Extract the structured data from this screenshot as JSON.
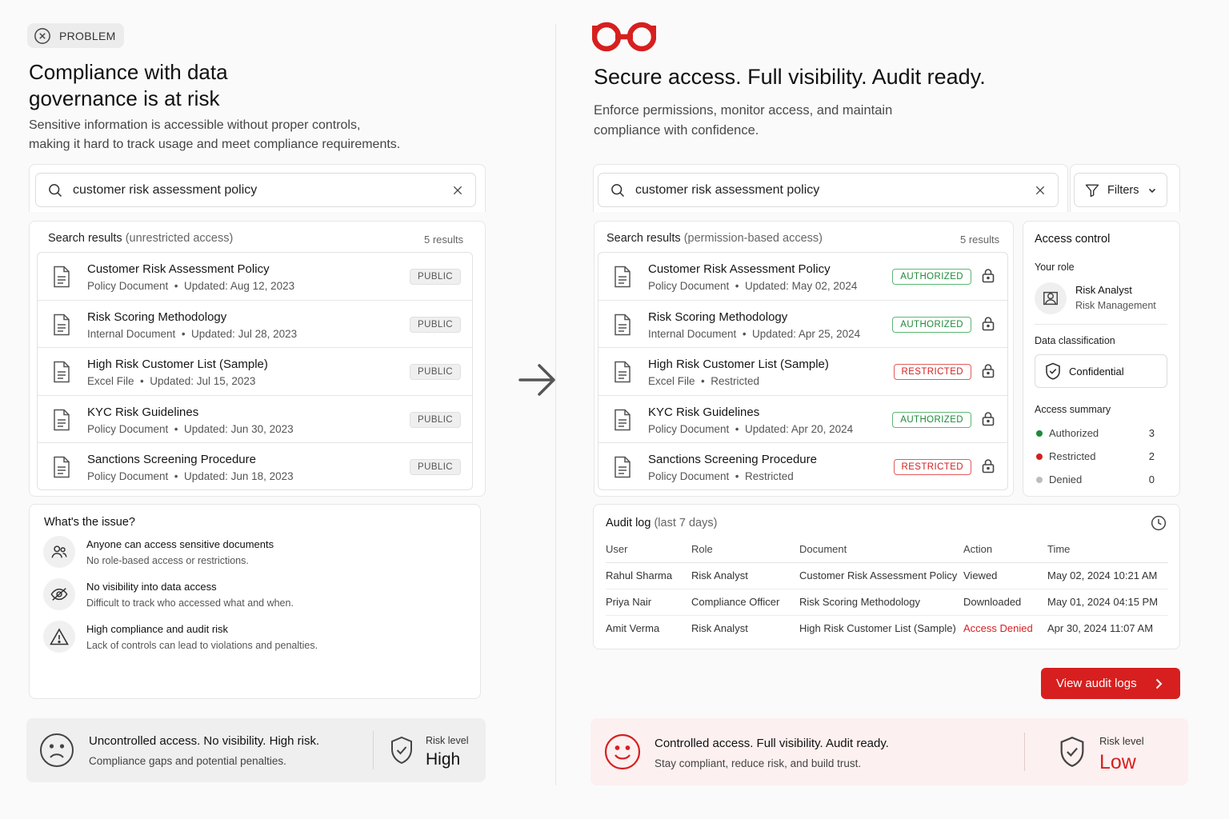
{
  "left": {
    "badge": "PROBLEM",
    "title_line1": "Compliance with data",
    "title_line2": "governance is at risk",
    "subtitle_line1": "Sensitive information is accessible without proper controls,",
    "subtitle_line2": "making it hard to track usage and meet compliance requirements.",
    "search_value": "customer risk assessment policy",
    "results_header": "Search results",
    "results_qualifier": "(unrestricted access)",
    "results_count": "5 results",
    "results": [
      {
        "title": "Customer Risk Assessment Policy",
        "type": "Policy Document",
        "meta": "Updated: Aug 12, 2023",
        "badge": "PUBLIC"
      },
      {
        "title": "Risk Scoring Methodology",
        "type": "Internal Document",
        "meta": "Updated: Jul 28, 2023",
        "badge": "PUBLIC"
      },
      {
        "title": "High Risk Customer List (Sample)",
        "type": "Excel File",
        "meta": "Updated: Jul 15, 2023",
        "badge": "PUBLIC"
      },
      {
        "title": "KYC Risk Guidelines",
        "type": "Policy Document",
        "meta": "Updated: Jun 30, 2023",
        "badge": "PUBLIC"
      },
      {
        "title": "Sanctions Screening Procedure",
        "type": "Policy Document",
        "meta": "Updated: Jun 18, 2023",
        "badge": "PUBLIC"
      }
    ],
    "issues_title": "What's the issue?",
    "issues": [
      {
        "icon": "users-icon",
        "title": "Anyone can access sensitive documents",
        "desc": "No role-based access or restrictions."
      },
      {
        "icon": "eye-off-icon",
        "title": "No visibility into data access",
        "desc": "Difficult to track who accessed what and when."
      },
      {
        "icon": "warning-icon",
        "title": "High compliance and audit risk",
        "desc": "Lack of controls can lead to violations and penalties."
      }
    ],
    "footer_title": "Uncontrolled access. No visibility. High risk.",
    "footer_desc": "Compliance gaps and potential penalties.",
    "risk_label": "Risk level",
    "risk_value": "High"
  },
  "right": {
    "title": "Secure access. Full visibility. Audit ready.",
    "subtitle_line1": "Enforce permissions, monitor access, and maintain",
    "subtitle_line2": "compliance with confidence.",
    "search_value": "customer risk assessment policy",
    "filters_label": "Filters",
    "results_header": "Search results",
    "results_qualifier": "(permission-based access)",
    "results_count": "5 results",
    "results": [
      {
        "title": "Customer Risk Assessment Policy",
        "type": "Policy Document",
        "meta": "Updated: May 02, 2024",
        "badge": "AUTHORIZED",
        "status": "auth"
      },
      {
        "title": "Risk Scoring Methodology",
        "type": "Internal Document",
        "meta": "Updated: Apr 25, 2024",
        "badge": "AUTHORIZED",
        "status": "auth"
      },
      {
        "title": "High Risk Customer List (Sample)",
        "type": "Excel File",
        "meta": "Restricted",
        "badge": "RESTRICTED",
        "status": "res"
      },
      {
        "title": "KYC Risk Guidelines",
        "type": "Policy Document",
        "meta": "Updated: Apr 20, 2024",
        "badge": "AUTHORIZED",
        "status": "auth"
      },
      {
        "title": "Sanctions Screening Procedure",
        "type": "Policy Document",
        "meta": "Restricted",
        "badge": "RESTRICTED",
        "status": "res"
      }
    ],
    "access_control": {
      "title": "Access control",
      "role_label": "Your role",
      "role_name": "Risk Analyst",
      "role_dept": "Risk Management",
      "classification_label": "Data classification",
      "classification_value": "Confidential",
      "summary_label": "Access summary",
      "summary": [
        {
          "label": "Authorized",
          "value": "3",
          "color": "#1e8a3a"
        },
        {
          "label": "Restricted",
          "value": "2",
          "color": "#d42020"
        },
        {
          "label": "Denied",
          "value": "0",
          "color": "#bdbdbd"
        }
      ]
    },
    "audit": {
      "title": "Audit log",
      "qualifier": "(last 7 days)",
      "columns": [
        "User",
        "Role",
        "Document",
        "Action",
        "Time"
      ],
      "rows": [
        {
          "user": "Rahul Sharma",
          "role": "Risk Analyst",
          "document": "Customer Risk Assessment Policy",
          "action": "Viewed",
          "time": "May 02, 2024 10:21 AM",
          "denied": false
        },
        {
          "user": "Priya Nair",
          "role": "Compliance Officer",
          "document": "Risk Scoring Methodology",
          "action": "Downloaded",
          "time": "May 01, 2024 04:15 PM",
          "denied": false
        },
        {
          "user": "Amit Verma",
          "role": "Risk Analyst",
          "document": "High Risk Customer List (Sample)",
          "action": "Access Denied",
          "time": "Apr 30, 2024 11:07 AM",
          "denied": true
        }
      ]
    },
    "view_logs_label": "View audit logs",
    "footer_title": "Controlled access. Full visibility. Audit ready.",
    "footer_desc": "Stay compliant, reduce risk, and build trust.",
    "risk_label": "Risk level",
    "risk_value": "Low",
    "accent_color": "#d71f1f"
  }
}
